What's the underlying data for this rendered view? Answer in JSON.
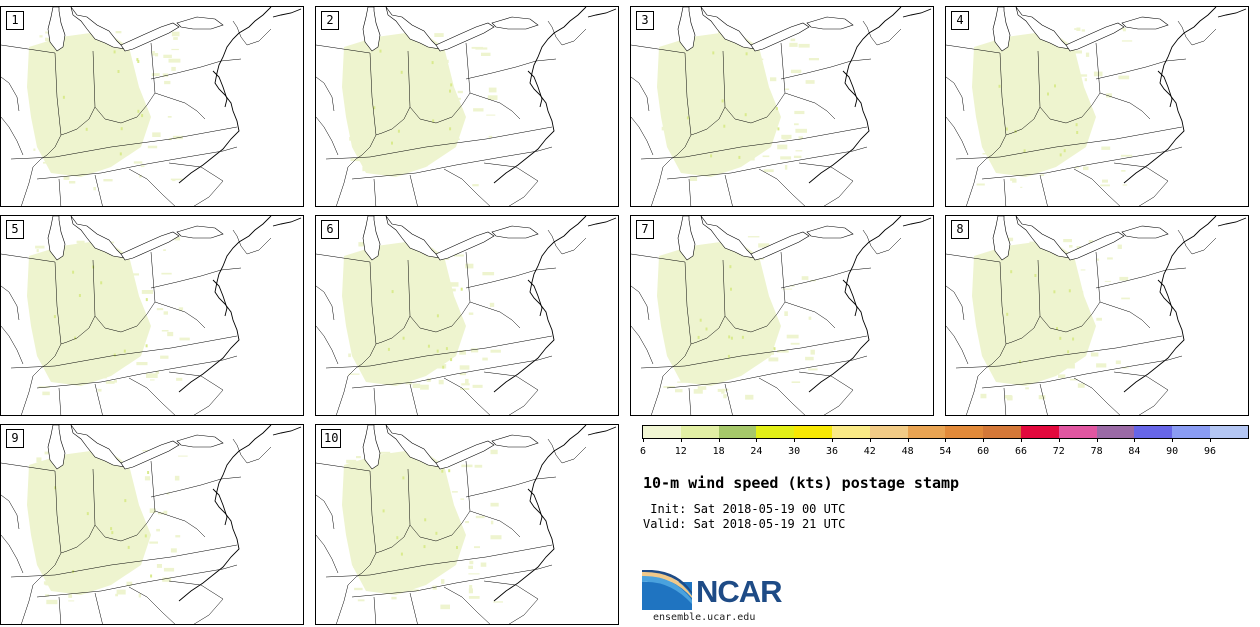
{
  "panels": [
    {
      "label": "1"
    },
    {
      "label": "2"
    },
    {
      "label": "3"
    },
    {
      "label": "4"
    },
    {
      "label": "5"
    },
    {
      "label": "6"
    },
    {
      "label": "7"
    },
    {
      "label": "8"
    },
    {
      "label": "9"
    },
    {
      "label": "10"
    }
  ],
  "legend": {
    "bins": [
      {
        "color": "#f1f6d3"
      },
      {
        "color": "#e2efa4"
      },
      {
        "color": "#a6c86a"
      },
      {
        "color": "#e2ef18"
      },
      {
        "color": "#f7e804"
      },
      {
        "color": "#faea86"
      },
      {
        "color": "#f2cb86"
      },
      {
        "color": "#e9a453"
      },
      {
        "color": "#e28a3a"
      },
      {
        "color": "#d47838"
      },
      {
        "color": "#e3093d"
      },
      {
        "color": "#e156a1"
      },
      {
        "color": "#9b6aa6"
      },
      {
        "color": "#6766e8"
      },
      {
        "color": "#8a9cf3"
      },
      {
        "color": "#b4c6f3"
      }
    ],
    "ticks": [
      "6",
      "12",
      "18",
      "24",
      "30",
      "36",
      "42",
      "48",
      "54",
      "60",
      "66",
      "72",
      "78",
      "84",
      "90",
      "96"
    ]
  },
  "title": "10-m wind speed (kts) postage stamp",
  "init_line": " Init: Sat 2018-05-19 00 UTC",
  "valid_line": "Valid: Sat 2018-05-19 21 UTC",
  "logo_text": "NCAR",
  "url": "ensemble.ucar.edu",
  "colors": {
    "wind_light": "#eef4cf",
    "wind_mid": "#d9ea8e"
  }
}
